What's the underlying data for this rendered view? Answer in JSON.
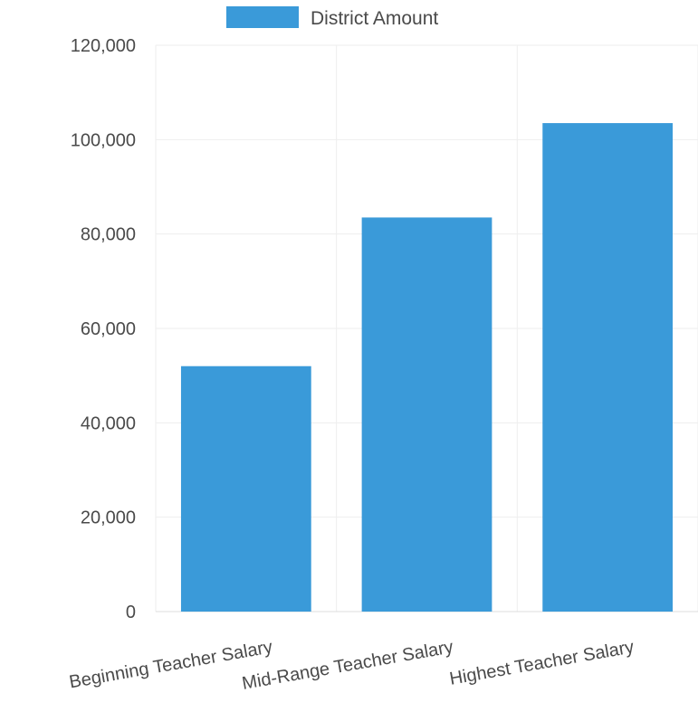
{
  "chart_data": {
    "type": "bar",
    "categories": [
      "Beginning Teacher Salary",
      "Mid-Range Teacher Salary",
      "Highest Teacher Salary"
    ],
    "series": [
      {
        "name": "District Amount",
        "color": "#3a9ad9",
        "values": [
          52000,
          83500,
          103500
        ]
      }
    ],
    "ylim": [
      0,
      120000
    ],
    "yticks": [
      0,
      20000,
      40000,
      60000,
      80000,
      100000,
      120000
    ],
    "ytick_labels": [
      "0",
      "20,000",
      "40,000",
      "60,000",
      "80,000",
      "100,000",
      "120,000"
    ],
    "grid": true,
    "legend_position": "top-center"
  }
}
